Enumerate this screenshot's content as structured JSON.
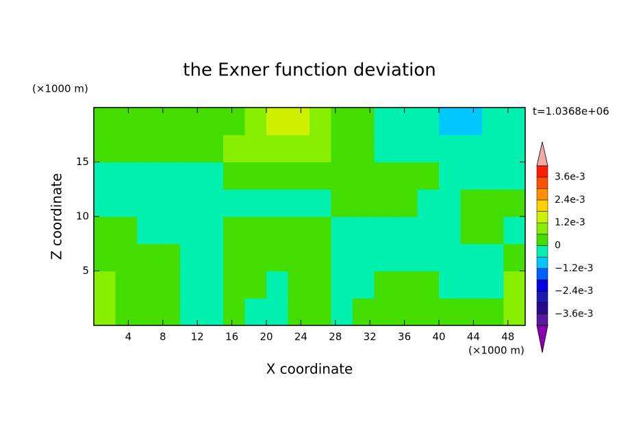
{
  "chart_data": {
    "type": "contourf",
    "title": "the Exner function deviation",
    "x_unit": "(×1000 m)",
    "y_unit": "(×1000 m)",
    "annotation": "t=1.0368e+06",
    "xlabel": "X coordinate",
    "ylabel": "Z coordinate",
    "xlim": [
      0,
      50
    ],
    "ylim": [
      0,
      20
    ],
    "xticks": [
      4,
      8,
      12,
      16,
      20,
      24,
      28,
      32,
      36,
      40,
      44,
      48
    ],
    "yticks": [
      5,
      10,
      15
    ],
    "x": [
      1.25,
      3.75,
      6.25,
      8.75,
      11.25,
      13.75,
      16.25,
      18.75,
      21.25,
      23.75,
      26.25,
      28.75,
      31.25,
      33.75,
      36.25,
      38.75,
      41.25,
      43.75,
      46.25,
      48.75
    ],
    "y": [
      1.25,
      3.75,
      6.25,
      8.75,
      11.25,
      13.75,
      16.25,
      18.75
    ],
    "values": [
      [
        0.0009,
        0.0003,
        0.0003,
        0.0003,
        -0.0003,
        -0.0003,
        0.0003,
        -0.0003,
        -0.0003,
        0.0003,
        0.0003,
        -0.0003,
        0.0003,
        0.0003,
        0.0003,
        0.0003,
        0.0003,
        0.0003,
        0.0003,
        0.0009
      ],
      [
        0.0009,
        0.0003,
        0.0003,
        0.0003,
        -0.0003,
        -0.0003,
        0.0003,
        0.0003,
        -0.0003,
        0.0003,
        0.0003,
        -0.0003,
        -0.0003,
        0.0003,
        0.0003,
        0.0003,
        -0.0003,
        -0.0003,
        -0.0003,
        0.0009
      ],
      [
        0.0003,
        0.0003,
        0.0003,
        0.0003,
        -0.0003,
        -0.0003,
        0.0003,
        0.0003,
        0.0003,
        0.0003,
        0.0003,
        -0.0003,
        -0.0003,
        -0.0003,
        -0.0003,
        -0.0003,
        -0.0003,
        -0.0003,
        -0.0003,
        0.0003
      ],
      [
        0.0003,
        0.0003,
        -0.0003,
        -0.0003,
        -0.0003,
        -0.0003,
        0.0003,
        0.0003,
        0.0003,
        0.0003,
        0.0003,
        -0.0003,
        -0.0003,
        -0.0003,
        -0.0003,
        -0.0003,
        -0.0003,
        0.0003,
        0.0003,
        -0.0003
      ],
      [
        -0.0003,
        -0.0003,
        -0.0003,
        -0.0003,
        -0.0003,
        -0.0003,
        -0.0003,
        -0.0003,
        -0.0003,
        -0.0003,
        -0.0003,
        0.0003,
        0.0003,
        0.0003,
        0.0003,
        -0.0003,
        -0.0003,
        0.0003,
        0.0003,
        0.0003
      ],
      [
        -0.0003,
        -0.0003,
        -0.0003,
        -0.0003,
        -0.0003,
        -0.0003,
        0.0003,
        0.0003,
        0.0003,
        0.0003,
        0.0003,
        0.0003,
        0.0003,
        0.0003,
        0.0003,
        0.0003,
        -0.0003,
        -0.0003,
        -0.0003,
        -0.0003
      ],
      [
        0.0003,
        0.0003,
        0.0003,
        0.0003,
        0.0003,
        0.0003,
        0.0009,
        0.0009,
        0.0009,
        0.0009,
        0.0009,
        0.0003,
        0.0003,
        -0.0003,
        -0.0003,
        -0.0003,
        -0.0003,
        -0.0003,
        -0.0003,
        -0.0003
      ],
      [
        0.0003,
        0.0003,
        0.0003,
        0.0003,
        0.0003,
        0.0003,
        0.0003,
        0.0009,
        0.0015,
        0.0015,
        0.0009,
        0.0003,
        0.0003,
        -0.0003,
        -0.0003,
        -0.0003,
        -0.0009,
        -0.0009,
        -0.0003,
        -0.0003
      ]
    ],
    "levels": [
      -0.0042,
      -0.0036,
      -0.003,
      -0.0024,
      -0.0018,
      -0.0012,
      -0.0006,
      0,
      0.0006,
      0.0012,
      0.0018,
      0.0024,
      0.003,
      0.0036,
      0.0042
    ],
    "colors": [
      "#5a1aa0",
      "#2a0a8a",
      "#1a1ab0",
      "#0000e0",
      "#0060ff",
      "#00c8ff",
      "#00f0b0",
      "#44dd00",
      "#88ee00",
      "#ccf000",
      "#ffd000",
      "#ff9000",
      "#ff5000",
      "#ff2000"
    ],
    "extend_colors": [
      "#8a00b0",
      "#f4a8a8"
    ],
    "colorbar_ticks": [
      {
        "value": 0.0036,
        "label": "3.6e-3"
      },
      {
        "value": 0.0024,
        "label": "2.4e-3"
      },
      {
        "value": 0.0012,
        "label": "1.2e-3"
      },
      0,
      {
        "value": -0.0012,
        "label": "−1.2e-3"
      },
      {
        "value": -0.0024,
        "label": "−2.4e-3"
      },
      {
        "value": -0.0036,
        "label": "−3.6e-3"
      }
    ]
  }
}
